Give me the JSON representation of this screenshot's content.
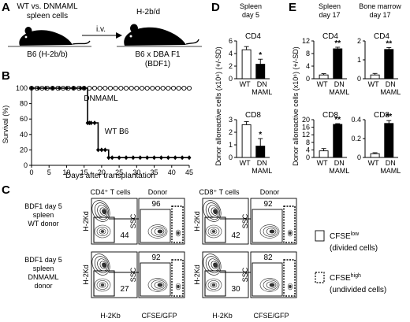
{
  "panels": {
    "a": "A",
    "b": "B",
    "c": "C",
    "d": "D",
    "e": "E"
  },
  "panel_a": {
    "donor_text": "WT vs. DNMAML",
    "donor_text2": "spleen cells",
    "route": "i.v.",
    "donor_strain": "B6 (H-2b/b)",
    "recipient_haplotype": "H-2b/d",
    "recipient_strain": "B6 x DBA F1",
    "recipient_abbrev": "(BDF1)"
  },
  "panel_c": {
    "col_headers": [
      "CD4⁺ T cells",
      "Donor",
      "CD8⁺ T cells",
      "Donor"
    ],
    "rows": [
      {
        "label": [
          "BDF1 day 5",
          "spleen",
          "WT donor"
        ],
        "cd4_gate": "44",
        "cd4_donor": "96",
        "cd8_gate": "42",
        "cd8_donor": "92"
      },
      {
        "label": [
          "BDF1 day 5",
          "spleen",
          "DNMAML",
          "donor"
        ],
        "cd4_gate": "27",
        "cd4_donor": "92",
        "cd8_gate": "30",
        "cd8_donor": "82"
      }
    ],
    "y_axis_gate": "H-2Kd",
    "y_axis_donor": "SSC",
    "x_axis_gate": "H-2Kb",
    "x_axis_donor": "CFSE/GFP",
    "legend": [
      {
        "title": "CFSE",
        "sup": "low",
        "desc": "(divided cells)",
        "style": "solid"
      },
      {
        "title": "CFSE",
        "sup": "high",
        "desc": "(undivided cells)",
        "style": "dashed"
      }
    ]
  },
  "chart_data": [
    {
      "type": "line",
      "panel": "B",
      "xlabel": "Days after transplantation",
      "ylabel": "Survival (%)",
      "xlim": [
        0,
        45
      ],
      "ylim": [
        0,
        100
      ],
      "xticks": [
        0,
        5,
        10,
        15,
        20,
        25,
        30,
        35,
        40,
        45
      ],
      "yticks": [
        0,
        20,
        40,
        60,
        80,
        100
      ],
      "series": [
        {
          "name": "DNMAML",
          "x": [
            0,
            1.5,
            3,
            4.5,
            6,
            7.5,
            9,
            10.5,
            12,
            13.5,
            15,
            16.5,
            18,
            19.5,
            21,
            22.5,
            24,
            25.5,
            27,
            28.5,
            30,
            31.5,
            33,
            34.5,
            36,
            37.5,
            39,
            40.5,
            42,
            43.5,
            45
          ],
          "y": [
            100,
            100,
            100,
            100,
            100,
            100,
            100,
            100,
            100,
            100,
            100,
            100,
            100,
            100,
            100,
            100,
            100,
            100,
            100,
            100,
            100,
            100,
            100,
            100,
            100,
            100,
            100,
            100,
            100,
            100,
            100
          ],
          "marker": "open-circle"
        },
        {
          "name": "WT B6",
          "x": [
            0,
            2,
            4,
            6,
            8,
            10,
            12,
            14,
            15,
            16,
            16.5,
            17,
            18,
            19,
            20,
            21,
            22,
            23,
            25,
            27,
            29,
            31,
            33,
            35,
            37,
            39,
            41,
            43,
            45
          ],
          "y": [
            100,
            100,
            100,
            100,
            100,
            100,
            100,
            100,
            100,
            55,
            55,
            55,
            55,
            20,
            20,
            20,
            10,
            10,
            10,
            10,
            10,
            10,
            10,
            10,
            10,
            10,
            10,
            10,
            10
          ],
          "marker": "filled-diamond"
        }
      ]
    },
    {
      "type": "bar",
      "panel": "D",
      "title": "Spleen",
      "subtitle": "day 5",
      "group": "CD4",
      "categories": [
        "WT",
        "DN MAML"
      ],
      "values": [
        4.6,
        2.3
      ],
      "errors": [
        0.5,
        0.8
      ],
      "ylim": [
        0,
        6
      ],
      "yticks": [
        0,
        2,
        4,
        6
      ],
      "significance": [
        "",
        "*"
      ]
    },
    {
      "type": "bar",
      "panel": "D",
      "group": "CD8",
      "categories": [
        "WT",
        "DN MAML"
      ],
      "values": [
        2.6,
        0.9
      ],
      "errors": [
        0.25,
        0.6
      ],
      "ylim": [
        0,
        3
      ],
      "yticks": [
        0,
        1,
        2,
        3
      ],
      "significance": [
        "",
        "*"
      ]
    },
    {
      "type": "bar",
      "panel": "E",
      "title": "Spleen",
      "subtitle": "day 17",
      "group": "CD4",
      "categories": [
        "WT",
        "DN MAML"
      ],
      "values": [
        1.2,
        9.5
      ],
      "errors": [
        0.4,
        0.5
      ],
      "ylim": [
        0,
        12
      ],
      "yticks": [
        0,
        4,
        8,
        12
      ],
      "significance": [
        "",
        "**"
      ]
    },
    {
      "type": "bar",
      "panel": "E",
      "title": "Bone marrow",
      "subtitle": "day 17",
      "group": "CD4",
      "categories": [
        "WT",
        "DN MAML"
      ],
      "values": [
        0.2,
        1.55
      ],
      "errors": [
        0.08,
        0.1
      ],
      "ylim": [
        0,
        2
      ],
      "yticks": [
        0,
        1,
        2
      ],
      "significance": [
        "",
        "**"
      ]
    },
    {
      "type": "bar",
      "panel": "E",
      "group": "CD8",
      "categories": [
        "WT",
        "DN MAML"
      ],
      "values": [
        3.5,
        17.5
      ],
      "errors": [
        1.2,
        0.4
      ],
      "ylim": [
        0,
        20
      ],
      "yticks": [
        0,
        4,
        8,
        12,
        16,
        20
      ],
      "significance": [
        "",
        "**"
      ]
    },
    {
      "type": "bar",
      "panel": "E",
      "group": "CD8",
      "categories": [
        "WT",
        "DN MAML"
      ],
      "values": [
        0.04,
        0.36
      ],
      "errors": [
        0.01,
        0.03
      ],
      "ylim": [
        0,
        0.4
      ],
      "yticks": [
        0,
        0.2,
        0.4
      ],
      "significance": [
        "",
        "**"
      ]
    }
  ],
  "shared_ylabel": "Donor alloreactive cells (x10⁶) (+/-SD)",
  "colors": {
    "wt_bar": "#ffffff",
    "dn_bar": "#000000",
    "ink": "#000000"
  }
}
